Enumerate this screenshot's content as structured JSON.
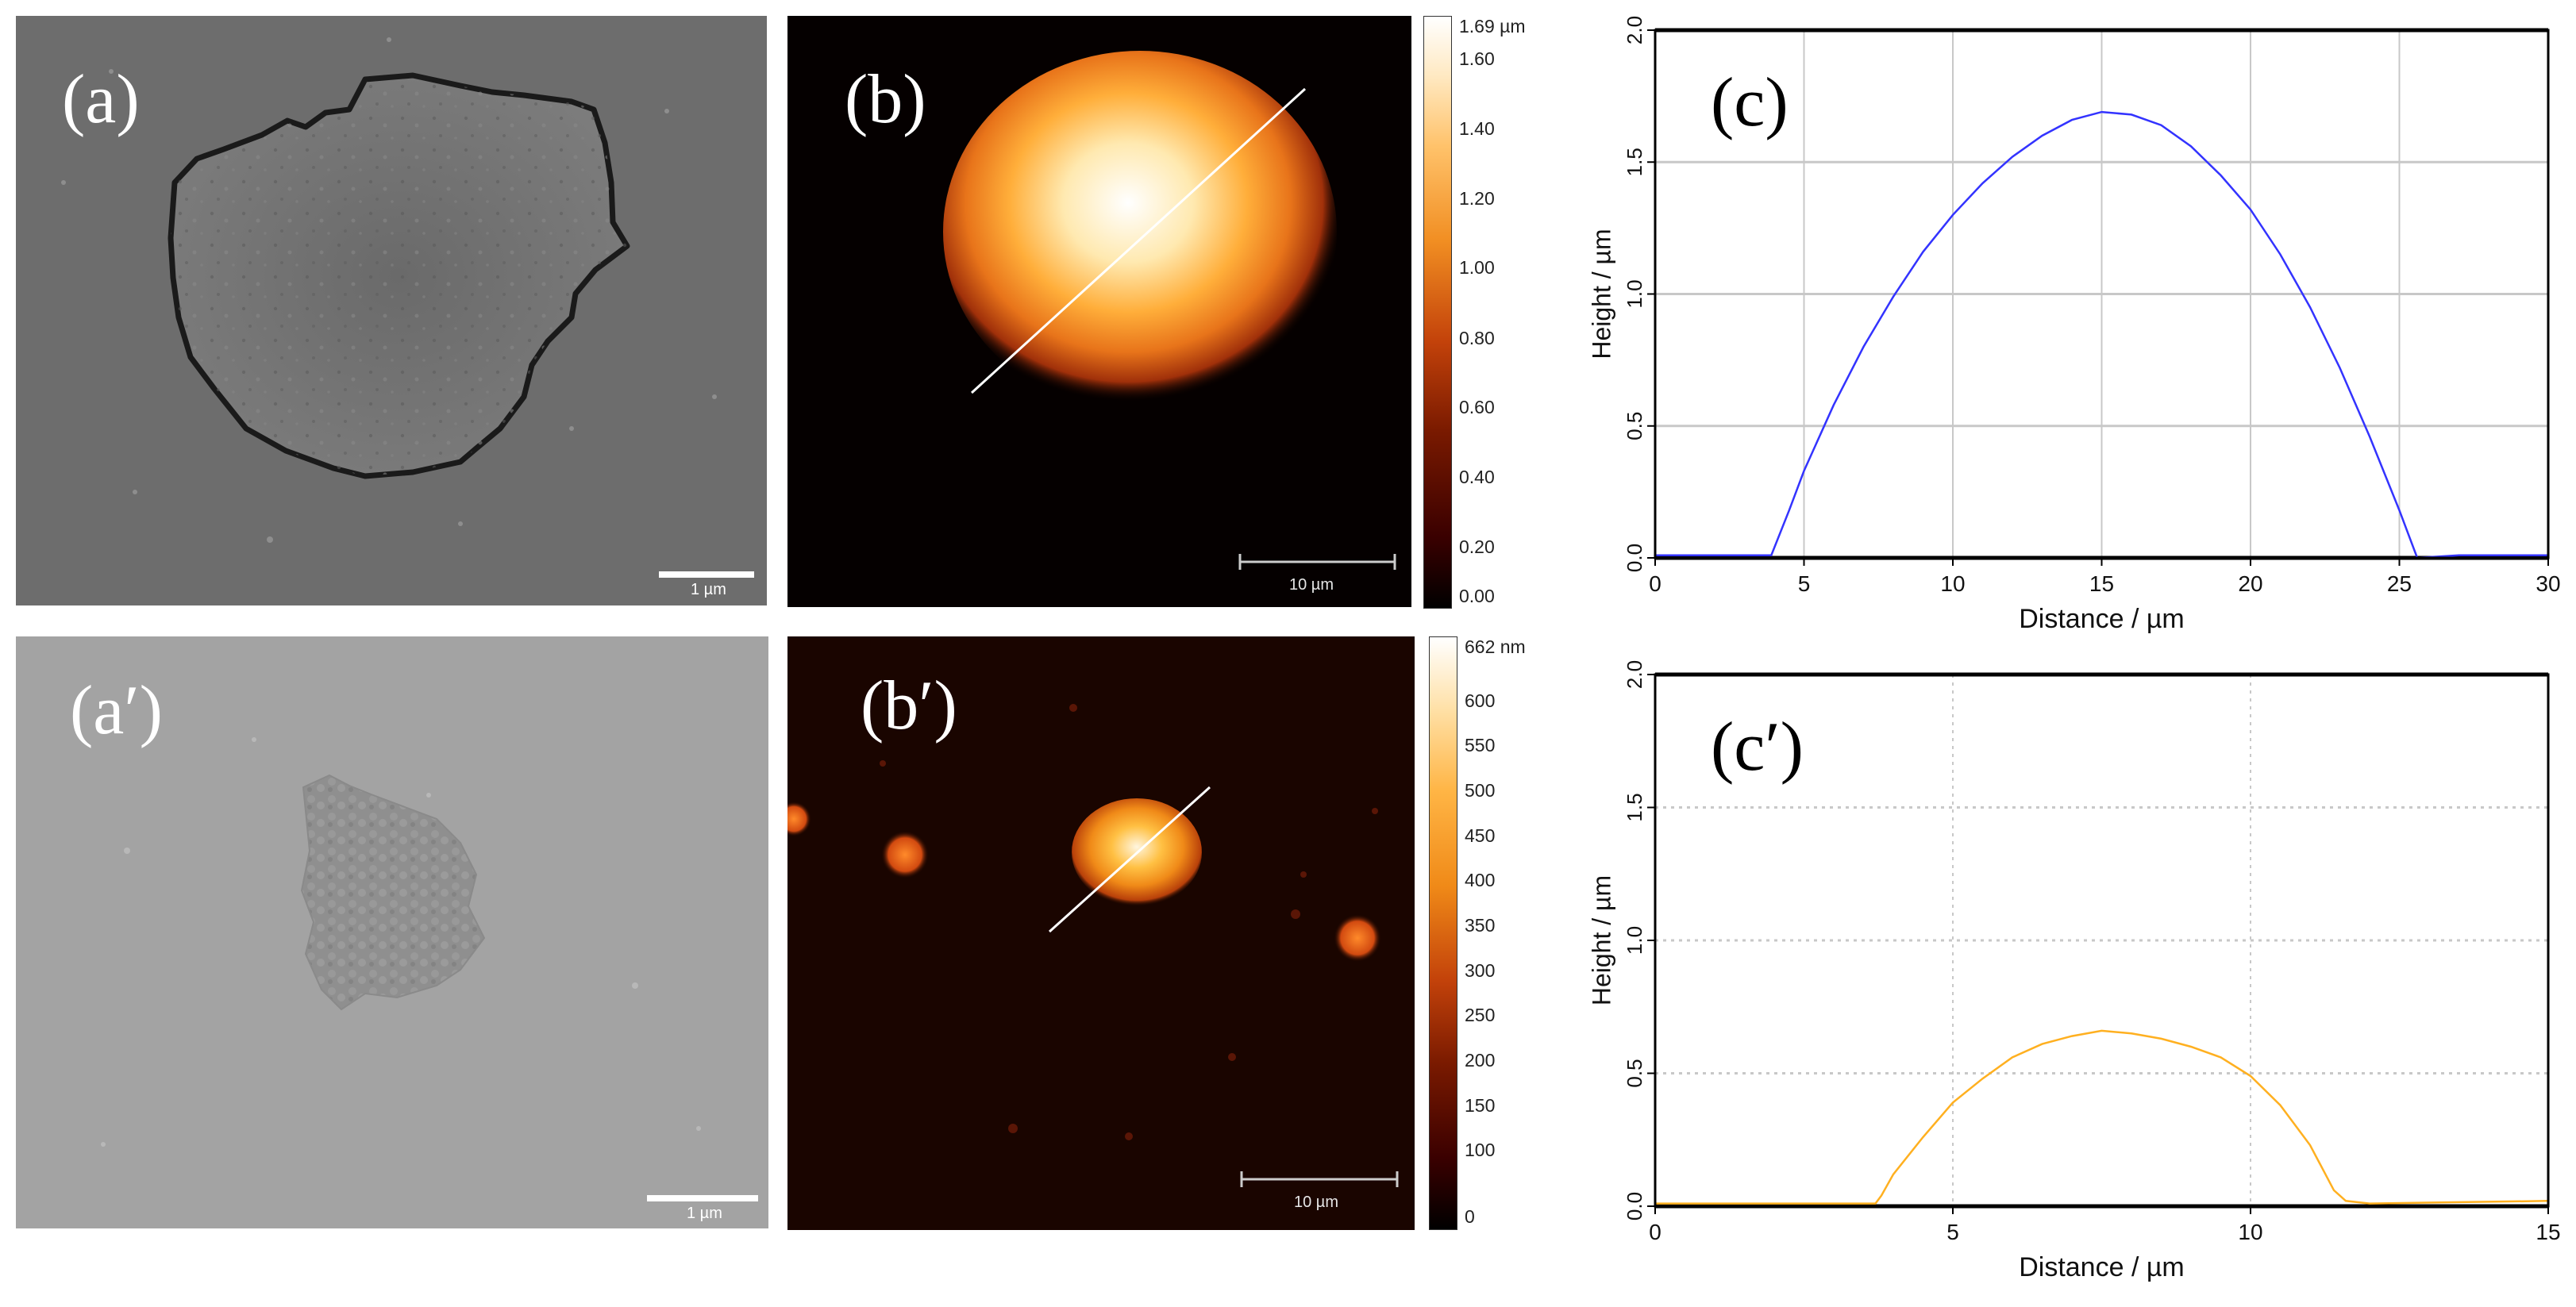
{
  "panels": {
    "a": {
      "label": "(a)",
      "scalebar": "1 µm"
    },
    "a2": {
      "label": "(a′)",
      "scalebar": "1 µm"
    },
    "b": {
      "label": "(b)",
      "scalebar": "10 µm",
      "colorbar": [
        "1.69 µm",
        "1.60",
        "1.40",
        "1.20",
        "1.00",
        "0.80",
        "0.60",
        "0.40",
        "0.20",
        "0.00"
      ]
    },
    "b2": {
      "label": "(b′)",
      "scalebar": "10 µm",
      "colorbar": [
        "662 nm",
        "600",
        "550",
        "500",
        "450",
        "400",
        "350",
        "300",
        "250",
        "200",
        "150",
        "100",
        "0"
      ]
    },
    "c": {
      "label": "(c)"
    },
    "c2": {
      "label": "(c′)"
    }
  },
  "chart_data": [
    {
      "type": "line",
      "label": "(c)",
      "xlabel": "Distance / µm",
      "ylabel": "Height / µm",
      "xlim": [
        0,
        30
      ],
      "ylim": [
        0,
        2.0
      ],
      "xticks": [
        "0",
        "5",
        "10",
        "15",
        "20",
        "25",
        "30"
      ],
      "yticks": [
        "0.0",
        "0.5",
        "1.0",
        "1.5",
        "2.0"
      ],
      "grid": "solid",
      "color": "#3333ff",
      "series": [
        {
          "x": [
            0,
            3.9,
            4.5,
            5,
            6,
            7,
            8,
            9,
            10,
            11,
            12,
            13,
            14,
            15,
            16,
            17,
            18,
            19,
            20,
            21,
            22,
            23,
            24,
            25,
            25.6,
            27,
            30
          ],
          "values": [
            0.01,
            0.01,
            0.18,
            0.33,
            0.58,
            0.8,
            0.99,
            1.16,
            1.3,
            1.42,
            1.52,
            1.6,
            1.66,
            1.69,
            1.68,
            1.64,
            1.56,
            1.45,
            1.32,
            1.15,
            0.95,
            0.72,
            0.46,
            0.18,
            0.0,
            0.01,
            0.01
          ]
        }
      ]
    },
    {
      "type": "line",
      "label": "(c′)",
      "xlabel": "Distance / µm",
      "ylabel": "Height / µm",
      "xlim": [
        0,
        15
      ],
      "ylim": [
        0,
        2.0
      ],
      "xticks": [
        "0",
        "5",
        "10",
        "15"
      ],
      "yticks": [
        "0.0",
        "0.5",
        "1.0",
        "1.5",
        "2.0"
      ],
      "grid": "dotted",
      "color": "#ffb020",
      "series": [
        {
          "x": [
            0,
            3.7,
            3.8,
            4,
            4.5,
            5,
            5.5,
            6,
            6.5,
            7,
            7.5,
            8,
            8.5,
            9,
            9.5,
            10,
            10.5,
            11,
            11.4,
            11.6,
            12,
            15
          ],
          "values": [
            0.01,
            0.01,
            0.04,
            0.12,
            0.26,
            0.39,
            0.48,
            0.56,
            0.61,
            0.64,
            0.66,
            0.65,
            0.63,
            0.6,
            0.56,
            0.49,
            0.38,
            0.23,
            0.06,
            0.02,
            0.01,
            0.02
          ]
        }
      ]
    }
  ]
}
